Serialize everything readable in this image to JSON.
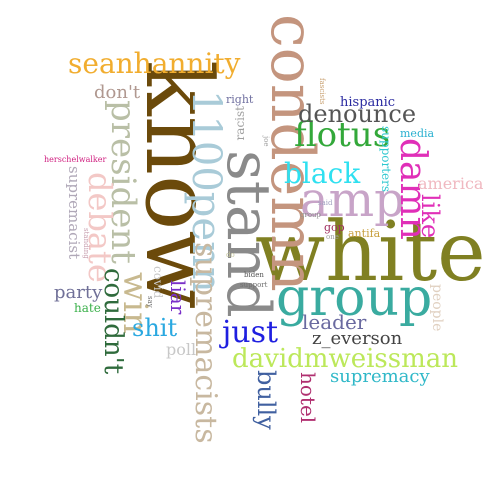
{
  "words": [
    {
      "text": "know",
      "color": "#6b4a0b"
    },
    {
      "text": "white",
      "color": "#808022"
    },
    {
      "text": "condemn",
      "color": "#c4957e"
    },
    {
      "text": "stand",
      "color": "#8a8a8a"
    },
    {
      "text": "group",
      "color": "#3aaba0"
    },
    {
      "text": "1100penn",
      "color": "#a9cbd8"
    },
    {
      "text": "supremacists",
      "color": "#c8b8a0"
    },
    {
      "text": "amp",
      "color": "#c8a4c8"
    },
    {
      "text": "seanhannity",
      "color": "#f1ad2f"
    },
    {
      "text": "president",
      "color": "#b9bfa6"
    },
    {
      "text": "debate",
      "color": "#f3c8c6"
    },
    {
      "text": "win",
      "color": "#c8b98f"
    },
    {
      "text": "couldn't",
      "color": "#2f6b3c"
    },
    {
      "text": "flotus",
      "color": "#33a83a"
    },
    {
      "text": "black",
      "color": "#2fe0f0"
    },
    {
      "text": "damn",
      "color": "#e02fb8"
    },
    {
      "text": "like",
      "color": "#e02fb8"
    },
    {
      "text": "denounce",
      "color": "#555555"
    },
    {
      "text": "davidmweissman",
      "color": "#bce85a"
    },
    {
      "text": "just",
      "color": "#1f1fe0"
    },
    {
      "text": "leader",
      "color": "#6a6aa0"
    },
    {
      "text": "z_everson",
      "color": "#444444"
    },
    {
      "text": "supremacy",
      "color": "#2fb8c8"
    },
    {
      "text": "bully",
      "color": "#4060a0"
    },
    {
      "text": "hotel",
      "color": "#b03070"
    },
    {
      "text": "liar",
      "color": "#7a30c8"
    },
    {
      "text": "shit",
      "color": "#2aa8e0"
    },
    {
      "text": "party",
      "color": "#707098"
    },
    {
      "text": "don't",
      "color": "#b09890"
    },
    {
      "text": "supremacist",
      "color": "#b0a8b8"
    },
    {
      "text": "hate",
      "color": "#3ab04a"
    },
    {
      "text": "poll",
      "color": "#c8c8c8"
    },
    {
      "text": "covid",
      "color": "#c8c8c8"
    },
    {
      "text": "america",
      "color": "#f0b8c0"
    },
    {
      "text": "people",
      "color": "#e0d0c0"
    },
    {
      "text": "hispanic",
      "color": "#2a2aa0"
    },
    {
      "text": "media",
      "color": "#2ab0d0"
    },
    {
      "text": "supporters",
      "color": "#30c8d0"
    },
    {
      "text": "racist",
      "color": "#a0a0a0"
    },
    {
      "text": "right",
      "color": "#7070a0"
    },
    {
      "text": "antifa",
      "color": "#c8a040"
    },
    {
      "text": "gop",
      "color": "#a03060"
    },
    {
      "text": "herschelwalker",
      "color": "#d02080"
    },
    {
      "text": "biden",
      "color": "#555555"
    },
    {
      "text": "support",
      "color": "#707070"
    },
    {
      "text": "joe",
      "color": "#a0a0a0"
    },
    {
      "text": "group",
      "color": "#909090"
    },
    {
      "text": "one",
      "color": "#a0a0a0"
    },
    {
      "text": "say",
      "color": "#707070"
    },
    {
      "text": "standing",
      "color": "#c8a0b0"
    },
    {
      "text": "do",
      "color": "#c8c8a0"
    },
    {
      "text": "fascists",
      "color": "#c8a070"
    },
    {
      "text": "said",
      "color": "#a0a0c0"
    }
  ]
}
